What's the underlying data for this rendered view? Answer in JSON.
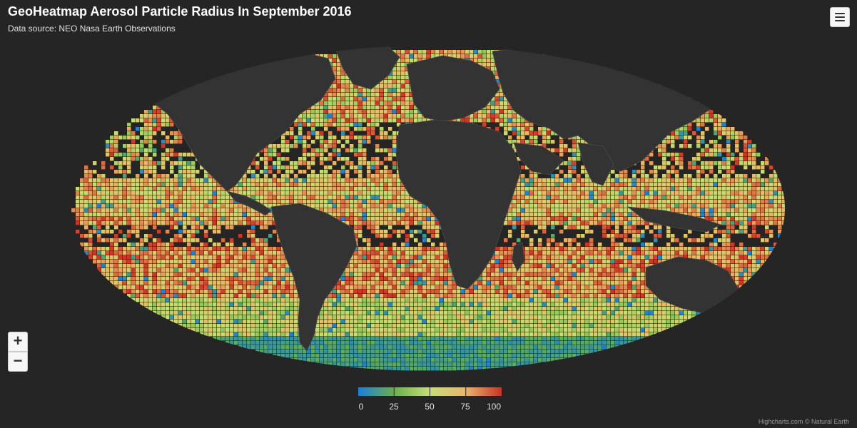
{
  "header": {
    "title": "GeoHeatmap Aerosol Particle Radius In September 2016",
    "subtitle": "Data source: NEO Nasa Earth Observations"
  },
  "controls": {
    "zoom_in_label": "+",
    "zoom_out_label": "−",
    "menu_icon": "hamburger-menu-icon"
  },
  "colors": {
    "background": "#252525",
    "land": "#333333",
    "border": "#4a4a4a",
    "scale_low": "#1c7fd8",
    "scale_low_mid": "#6bb04c",
    "scale_mid": "#c6dd7a",
    "scale_high_mid": "#e9b56c",
    "scale_high": "#c83226"
  },
  "legend": {
    "min": 0,
    "max": 100,
    "ticks": [
      "0",
      "25",
      "50",
      "75",
      "100"
    ]
  },
  "credits": "Highcharts.com © Natural Earth"
}
